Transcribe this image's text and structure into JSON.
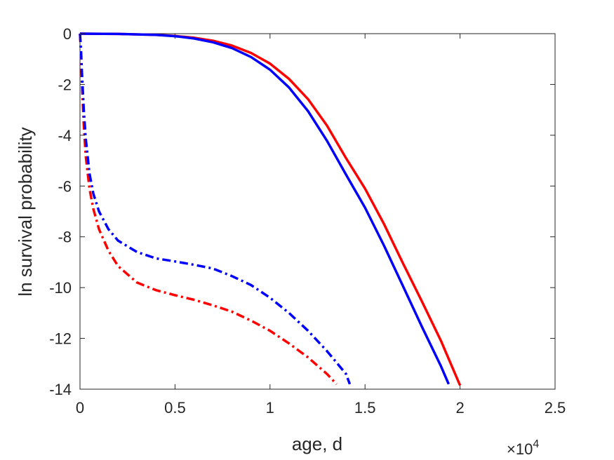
{
  "chart_data": {
    "type": "line",
    "xlabel": "age, d",
    "ylabel": "ln survival probability",
    "x_exponent_label": "×10",
    "x_exponent_power": "4",
    "xlim": [
      0,
      25000
    ],
    "ylim": [
      -14,
      0
    ],
    "xticks": [
      0,
      5000,
      10000,
      15000,
      20000,
      25000
    ],
    "xtick_labels": [
      "0",
      "0.5",
      "1",
      "1.5",
      "2",
      "2.5"
    ],
    "yticks": [
      0,
      -2,
      -4,
      -6,
      -8,
      -10,
      -12,
      -14
    ],
    "ytick_labels": [
      "0",
      "-2",
      "-4",
      "-6",
      "-8",
      "-10",
      "-12",
      "-14"
    ],
    "grid": false,
    "series": [
      {
        "color": "#ff0000",
        "style": "solid",
        "x": [
          0,
          2000,
          4000,
          5000,
          6000,
          7000,
          8000,
          9000,
          10000,
          11000,
          12000,
          13000,
          14000,
          15000,
          16000,
          17000,
          18000,
          19000,
          20000
        ],
        "y": [
          0,
          -0.01,
          -0.05,
          -0.09,
          -0.16,
          -0.28,
          -0.47,
          -0.76,
          -1.18,
          -1.78,
          -2.58,
          -3.62,
          -4.9,
          -6.1,
          -7.5,
          -9.05,
          -10.55,
          -12.1,
          -13.85
        ]
      },
      {
        "color": "#0000ff",
        "style": "solid",
        "x": [
          0,
          2000,
          4000,
          5000,
          6000,
          7000,
          8000,
          9000,
          10000,
          11000,
          12000,
          13000,
          14000,
          15000,
          16000,
          17000,
          18000,
          19000,
          19400
        ],
        "y": [
          0,
          -0.01,
          -0.05,
          -0.1,
          -0.19,
          -0.34,
          -0.57,
          -0.92,
          -1.42,
          -2.12,
          -3.05,
          -4.22,
          -5.55,
          -6.85,
          -8.35,
          -9.95,
          -11.55,
          -13.1,
          -13.8
        ]
      },
      {
        "color": "#ff0000",
        "style": "dashdot",
        "x": [
          0,
          50,
          100,
          200,
          300,
          500,
          700,
          1000,
          1500,
          2000,
          3000,
          4000,
          5000,
          6000,
          7000,
          8000,
          9000,
          10000,
          11000,
          12000,
          13000,
          13500
        ],
        "y": [
          0,
          -0.8,
          -1.9,
          -3.6,
          -4.8,
          -6.1,
          -6.9,
          -7.7,
          -8.55,
          -9.15,
          -9.8,
          -10.1,
          -10.3,
          -10.48,
          -10.7,
          -10.95,
          -11.3,
          -11.7,
          -12.2,
          -12.75,
          -13.4,
          -13.8
        ]
      },
      {
        "color": "#0000ff",
        "style": "dashdot",
        "x": [
          0,
          50,
          100,
          200,
          300,
          500,
          700,
          1000,
          1500,
          2000,
          3000,
          4000,
          5000,
          6000,
          7000,
          8000,
          9000,
          10000,
          11000,
          12000,
          13000,
          14000,
          14200
        ],
        "y": [
          0,
          -0.6,
          -1.5,
          -3.0,
          -4.1,
          -5.5,
          -6.3,
          -7.0,
          -7.7,
          -8.15,
          -8.6,
          -8.85,
          -8.97,
          -9.1,
          -9.25,
          -9.55,
          -9.9,
          -10.4,
          -11.0,
          -11.7,
          -12.5,
          -13.4,
          -13.8
        ]
      }
    ]
  }
}
